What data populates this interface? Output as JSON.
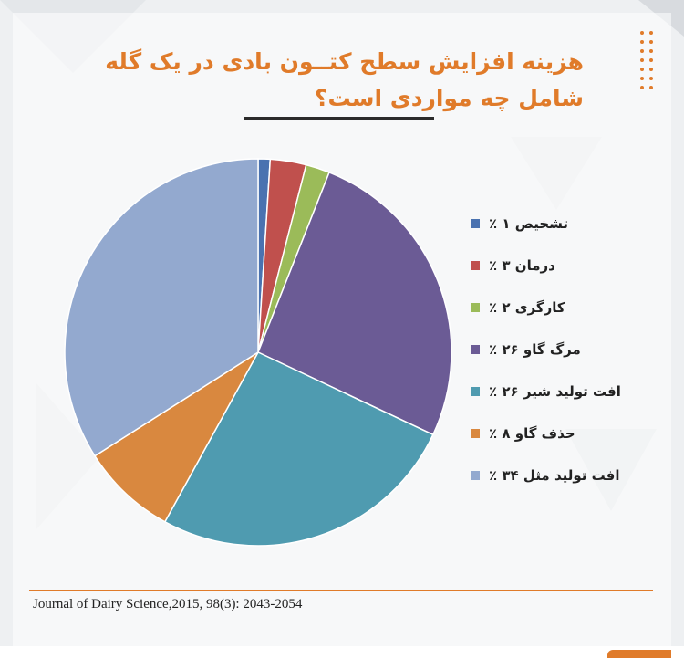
{
  "title": "هزینه افزایش سطح کتــون بادی در یک گله شامل چه مواردی است؟",
  "source": "Journal of Dairy Science,2015, 98(3): 2043-2054",
  "colors": {
    "accent": "#e07b2a",
    "background": "#eef0f2"
  },
  "chart_data": {
    "type": "pie",
    "title": "هزینه افزایش سطح کتــون بادی در یک گله شامل چه مواردی است؟",
    "legend_position": "right",
    "start_angle": "12 o'clock, clockwise",
    "slices": [
      {
        "label": "تشخیص ۱ ٪",
        "value": 1,
        "color": "#4a72b0"
      },
      {
        "label": "درمان ۳ ٪",
        "value": 3,
        "color": "#c0504d"
      },
      {
        "label": "کارگری ۲ ٪",
        "value": 2,
        "color": "#9bbb59"
      },
      {
        "label": "مرگ گاو ۲۶ ٪",
        "value": 26,
        "color": "#6b5b95"
      },
      {
        "label": "افت تولید شیر ۲۶ ٪",
        "value": 26,
        "color": "#4f9bb0"
      },
      {
        "label": "حذف گاو ۸ ٪",
        "value": 8,
        "color": "#d9883f"
      },
      {
        "label": "افت تولید مثل ۳۴ ٪",
        "value": 34,
        "color": "#93a9cf"
      }
    ]
  }
}
